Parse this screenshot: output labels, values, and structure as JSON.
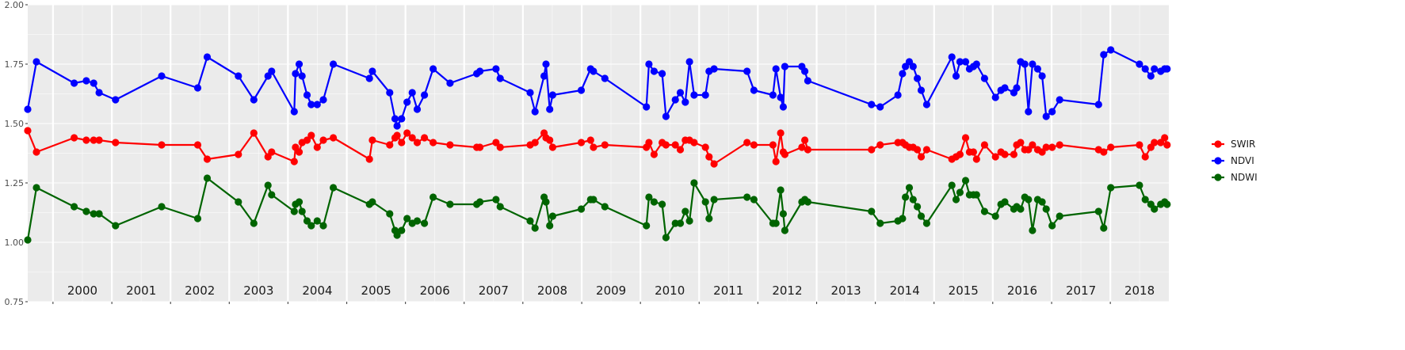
{
  "chart_data": {
    "type": "line",
    "ylim": [
      0.75,
      2.0
    ],
    "yticks": [
      "0.75",
      "1.00",
      "1.25",
      "1.50",
      "1.75",
      "2.00"
    ],
    "xlim": [
      "1999-07-28",
      "2018-12-31"
    ],
    "year_labels": [
      "2000",
      "2001",
      "2002",
      "2003",
      "2004",
      "2005",
      "2006",
      "2007",
      "2008",
      "2009",
      "2010",
      "2011",
      "2012",
      "2013",
      "2014",
      "2015",
      "2016",
      "2017",
      "2018"
    ],
    "grid": true,
    "legend_position": "right",
    "colors": {
      "SWIR": "#ff0000",
      "NDVI": "#0000ff",
      "NDWI": "#006400",
      "panel": "#ebebeb",
      "grid": "#ffffff"
    },
    "dates": [
      "1999-07-28",
      "1999-09-20",
      "2000-05-12",
      "2000-07-26",
      "2000-09-10",
      "2000-10-14",
      "2001-01-24",
      "2001-11-07",
      "2002-06-19",
      "2002-08-17",
      "2003-02-27",
      "2003-06-03",
      "2003-08-30",
      "2003-09-22",
      "2004-02-09",
      "2004-02-17",
      "2004-03-11",
      "2004-03-29",
      "2004-04-29",
      "2004-05-25",
      "2004-07-01",
      "2004-08-08",
      "2004-10-09",
      "2005-05-22",
      "2005-06-09",
      "2005-09-25",
      "2005-10-28",
      "2005-11-10",
      "2005-12-08",
      "2006-01-11",
      "2006-02-12",
      "2006-03-15",
      "2006-04-29",
      "2006-06-22",
      "2006-10-05",
      "2007-03-20",
      "2007-04-09",
      "2007-07-18",
      "2007-08-13",
      "2008-02-15",
      "2008-03-17",
      "2008-05-12",
      "2008-05-24",
      "2008-06-16",
      "2008-07-04",
      "2008-12-29",
      "2009-02-25",
      "2009-03-15",
      "2009-05-25",
      "2010-02-07",
      "2010-02-23",
      "2010-03-27",
      "2010-05-16",
      "2010-06-09",
      "2010-08-06",
      "2010-09-06",
      "2010-10-07",
      "2010-11-02",
      "2010-12-01",
      "2011-02-09",
      "2011-03-04",
      "2011-04-04",
      "2011-10-26",
      "2011-12-08",
      "2012-04-04",
      "2012-04-23",
      "2012-05-22",
      "2012-06-07",
      "2012-06-17",
      "2012-10-01",
      "2012-10-19",
      "2012-11-07",
      "2013-12-08",
      "2014-01-31",
      "2014-05-21",
      "2014-06-19",
      "2014-07-07",
      "2014-07-31",
      "2014-08-24",
      "2014-09-19",
      "2014-10-13",
      "2014-11-16",
      "2015-04-22",
      "2015-05-18",
      "2015-06-11",
      "2015-07-16",
      "2015-08-09",
      "2015-09-03",
      "2015-09-22",
      "2015-11-11",
      "2016-01-18",
      "2016-02-21",
      "2016-03-16",
      "2016-05-11",
      "2016-05-29",
      "2016-06-22",
      "2016-07-18",
      "2016-08-10",
      "2016-09-04",
      "2016-10-06",
      "2016-11-03",
      "2016-11-28",
      "2017-01-04",
      "2017-02-20",
      "2017-10-20",
      "2017-11-21",
      "2018-01-04",
      "2018-07-01",
      "2018-08-06",
      "2018-09-10",
      "2018-10-02",
      "2018-11-10",
      "2018-12-05",
      "2018-12-20"
    ],
    "series": [
      {
        "name": "SWIR",
        "values": [
          1.47,
          1.38,
          1.44,
          1.43,
          1.43,
          1.43,
          1.42,
          1.41,
          1.41,
          1.35,
          1.37,
          1.46,
          1.36,
          1.38,
          1.34,
          1.4,
          1.38,
          1.42,
          1.43,
          1.45,
          1.4,
          1.43,
          1.44,
          1.35,
          1.43,
          1.41,
          1.44,
          1.45,
          1.42,
          1.46,
          1.44,
          1.42,
          1.44,
          1.42,
          1.41,
          1.4,
          1.4,
          1.42,
          1.4,
          1.41,
          1.42,
          1.46,
          1.44,
          1.43,
          1.4,
          1.42,
          1.43,
          1.4,
          1.41,
          1.4,
          1.42,
          1.37,
          1.42,
          1.41,
          1.41,
          1.39,
          1.43,
          1.43,
          1.42,
          1.4,
          1.36,
          1.33,
          1.42,
          1.41,
          1.41,
          1.34,
          1.46,
          1.38,
          1.37,
          1.4,
          1.43,
          1.39,
          1.39,
          1.41,
          1.42,
          1.42,
          1.41,
          1.4,
          1.4,
          1.39,
          1.36,
          1.39,
          1.35,
          1.36,
          1.37,
          1.44,
          1.38,
          1.38,
          1.35,
          1.41,
          1.36,
          1.38,
          1.37,
          1.37,
          1.41,
          1.42,
          1.39,
          1.39,
          1.41,
          1.39,
          1.38,
          1.4,
          1.4,
          1.41,
          1.39,
          1.38,
          1.4,
          1.41,
          1.36,
          1.4,
          1.42,
          1.42,
          1.44,
          1.41
        ]
      },
      {
        "name": "NDVI",
        "values": [
          1.56,
          1.76,
          1.67,
          1.68,
          1.67,
          1.63,
          1.6,
          1.7,
          1.65,
          1.78,
          1.7,
          1.6,
          1.7,
          1.72,
          1.55,
          1.71,
          1.75,
          1.7,
          1.62,
          1.58,
          1.58,
          1.6,
          1.75,
          1.69,
          1.72,
          1.63,
          1.52,
          1.49,
          1.52,
          1.59,
          1.63,
          1.56,
          1.62,
          1.73,
          1.67,
          1.71,
          1.72,
          1.73,
          1.69,
          1.63,
          1.55,
          1.7,
          1.75,
          1.56,
          1.62,
          1.64,
          1.73,
          1.72,
          1.69,
          1.57,
          1.75,
          1.72,
          1.71,
          1.53,
          1.6,
          1.63,
          1.59,
          1.76,
          1.62,
          1.62,
          1.72,
          1.73,
          1.72,
          1.64,
          1.62,
          1.73,
          1.61,
          1.57,
          1.74,
          1.74,
          1.72,
          1.68,
          1.58,
          1.57,
          1.62,
          1.71,
          1.74,
          1.76,
          1.74,
          1.69,
          1.64,
          1.58,
          1.78,
          1.7,
          1.76,
          1.76,
          1.73,
          1.74,
          1.75,
          1.69,
          1.61,
          1.64,
          1.65,
          1.63,
          1.65,
          1.76,
          1.75,
          1.55,
          1.75,
          1.73,
          1.7,
          1.53,
          1.55,
          1.6,
          1.58,
          1.79,
          1.81,
          1.75,
          1.73,
          1.7,
          1.73,
          1.72,
          1.73,
          1.73
        ]
      },
      {
        "name": "NDWI",
        "values": [
          1.01,
          1.23,
          1.15,
          1.13,
          1.12,
          1.12,
          1.07,
          1.15,
          1.1,
          1.27,
          1.17,
          1.08,
          1.24,
          1.2,
          1.13,
          1.16,
          1.17,
          1.13,
          1.09,
          1.07,
          1.09,
          1.07,
          1.23,
          1.16,
          1.17,
          1.12,
          1.05,
          1.03,
          1.05,
          1.1,
          1.08,
          1.09,
          1.08,
          1.19,
          1.16,
          1.16,
          1.17,
          1.18,
          1.15,
          1.09,
          1.06,
          1.19,
          1.17,
          1.07,
          1.11,
          1.14,
          1.18,
          1.18,
          1.15,
          1.07,
          1.19,
          1.17,
          1.16,
          1.02,
          1.08,
          1.08,
          1.13,
          1.09,
          1.25,
          1.17,
          1.1,
          1.18,
          1.19,
          1.18,
          1.08,
          1.08,
          1.22,
          1.12,
          1.05,
          1.17,
          1.18,
          1.17,
          1.13,
          1.08,
          1.09,
          1.1,
          1.19,
          1.23,
          1.18,
          1.15,
          1.11,
          1.08,
          1.24,
          1.18,
          1.21,
          1.26,
          1.2,
          1.2,
          1.2,
          1.13,
          1.11,
          1.16,
          1.17,
          1.14,
          1.15,
          1.14,
          1.19,
          1.18,
          1.05,
          1.18,
          1.17,
          1.14,
          1.07,
          1.11,
          1.13,
          1.06,
          1.23,
          1.24,
          1.18,
          1.16,
          1.14,
          1.16,
          1.17,
          1.16
        ]
      }
    ]
  }
}
